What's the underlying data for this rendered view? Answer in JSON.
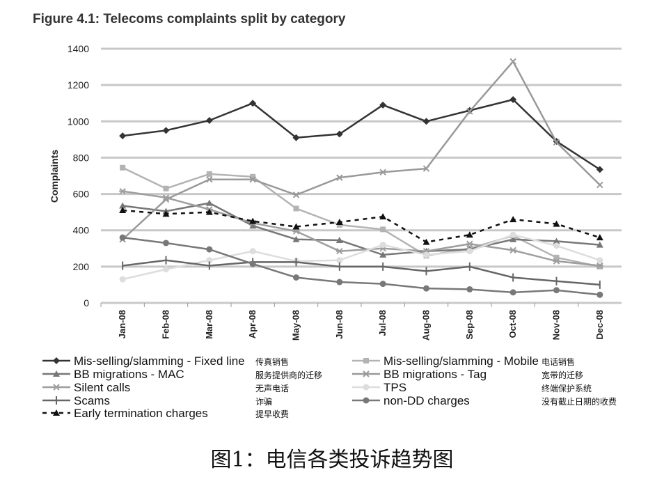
{
  "chart_data": {
    "type": "line",
    "title": "Figure 4.1: Telecoms complaints split by category",
    "ylabel": "Complaints",
    "xlabel": "",
    "ylim": [
      0,
      1400
    ],
    "yticks": [
      0,
      200,
      400,
      600,
      800,
      1000,
      1200,
      1400
    ],
    "grid": true,
    "legend_position": "bottom",
    "categories": [
      "Jan-08",
      "Feb-08",
      "Mar-08",
      "Apr-08",
      "May-08",
      "Jun-08",
      "Jul-08",
      "Aug-08",
      "Sep-08",
      "Oct-08",
      "Nov-08",
      "Dec-08"
    ],
    "series": [
      {
        "name": "Mis-selling/slamming - Fixed line",
        "note": "传真销售",
        "color": "#333333",
        "marker": "diamond",
        "dash": false,
        "values": [
          920,
          950,
          1005,
          1100,
          910,
          930,
          1090,
          1000,
          1060,
          1120,
          890,
          735
        ]
      },
      {
        "name": "Mis-selling/slamming - Mobile",
        "note": "电话销售",
        "color": "#b3b3b3",
        "marker": "square",
        "dash": false,
        "values": [
          745,
          630,
          710,
          695,
          520,
          430,
          405,
          260,
          300,
          370,
          250,
          200
        ]
      },
      {
        "name": "BB migrations - MAC",
        "note": "服务提供商的迁移",
        "color": "#777777",
        "marker": "triangle",
        "dash": false,
        "values": [
          535,
          505,
          550,
          425,
          350,
          345,
          265,
          285,
          295,
          350,
          340,
          320
        ]
      },
      {
        "name": "BB migrations - Tag",
        "note": "宽带的迁移",
        "color": "#999999",
        "marker": "x",
        "dash": false,
        "values": [
          350,
          570,
          680,
          680,
          595,
          690,
          720,
          740,
          1055,
          1330,
          885,
          650
        ]
      },
      {
        "name": "Silent calls",
        "note": "无声电话",
        "color": "#9e9e9e",
        "marker": "star",
        "dash": false,
        "values": [
          615,
          580,
          515,
          440,
          395,
          285,
          300,
          285,
          325,
          290,
          230,
          205
        ]
      },
      {
        "name": "TPS",
        "note": "终端保护系统",
        "color": "#dddddd",
        "marker": "circle",
        "dash": false,
        "values": [
          130,
          185,
          235,
          285,
          230,
          235,
          320,
          265,
          285,
          375,
          315,
          235
        ]
      },
      {
        "name": "Scams",
        "note": "诈骗",
        "color": "#666666",
        "marker": "plus",
        "dash": false,
        "values": [
          205,
          235,
          205,
          225,
          225,
          200,
          200,
          175,
          200,
          140,
          120,
          100
        ]
      },
      {
        "name": "non-DD charges",
        "note": "没有截止日期的收费",
        "color": "#787878",
        "marker": "circle",
        "dash": false,
        "values": [
          360,
          330,
          295,
          215,
          140,
          115,
          105,
          80,
          75,
          58,
          70,
          45
        ]
      },
      {
        "name": "Early termination charges",
        "note": "提早收费",
        "color": "#111111",
        "marker": "triangle",
        "dash": true,
        "values": [
          510,
          490,
          500,
          450,
          420,
          445,
          475,
          335,
          375,
          460,
          435,
          360
        ]
      }
    ]
  },
  "caption": "图1：电信各类投诉趋势图"
}
